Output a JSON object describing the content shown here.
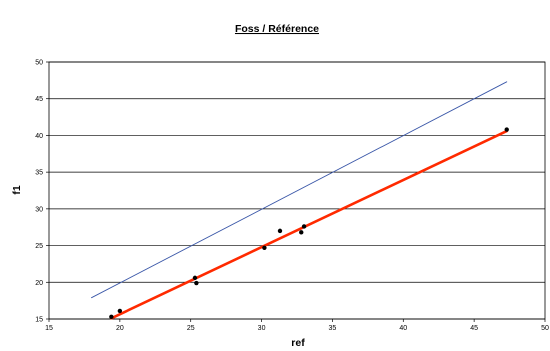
{
  "chart_data": {
    "type": "scatter",
    "title": "Foss / Référence",
    "xlabel": "ref",
    "ylabel": "f1",
    "xlim": [
      15,
      50
    ],
    "ylim": [
      15,
      50
    ],
    "x_ticks": [
      "15",
      "20",
      "25",
      "30",
      "35",
      "40",
      "45",
      "50"
    ],
    "y_ticks": [
      "15",
      "20",
      "25",
      "30",
      "35",
      "40",
      "45",
      "50"
    ],
    "grid": "horizontal",
    "legend": "none",
    "series": [
      {
        "kind": "points",
        "color": "#000000",
        "points": [
          [
            19.4,
            15.3
          ],
          [
            20.0,
            16.1
          ],
          [
            25.3,
            20.6
          ],
          [
            25.4,
            19.9
          ],
          [
            30.2,
            24.7
          ],
          [
            31.3,
            27.0
          ],
          [
            32.8,
            26.8
          ],
          [
            33.0,
            27.6
          ],
          [
            47.3,
            40.8
          ]
        ]
      },
      {
        "kind": "line",
        "color": "#ff2a00",
        "points": [
          [
            19.4,
            15.1
          ],
          [
            47.3,
            40.6
          ]
        ]
      },
      {
        "kind": "line",
        "color": "#3a57a8",
        "points": [
          [
            18.0,
            17.9
          ],
          [
            47.3,
            47.3
          ]
        ]
      }
    ]
  }
}
